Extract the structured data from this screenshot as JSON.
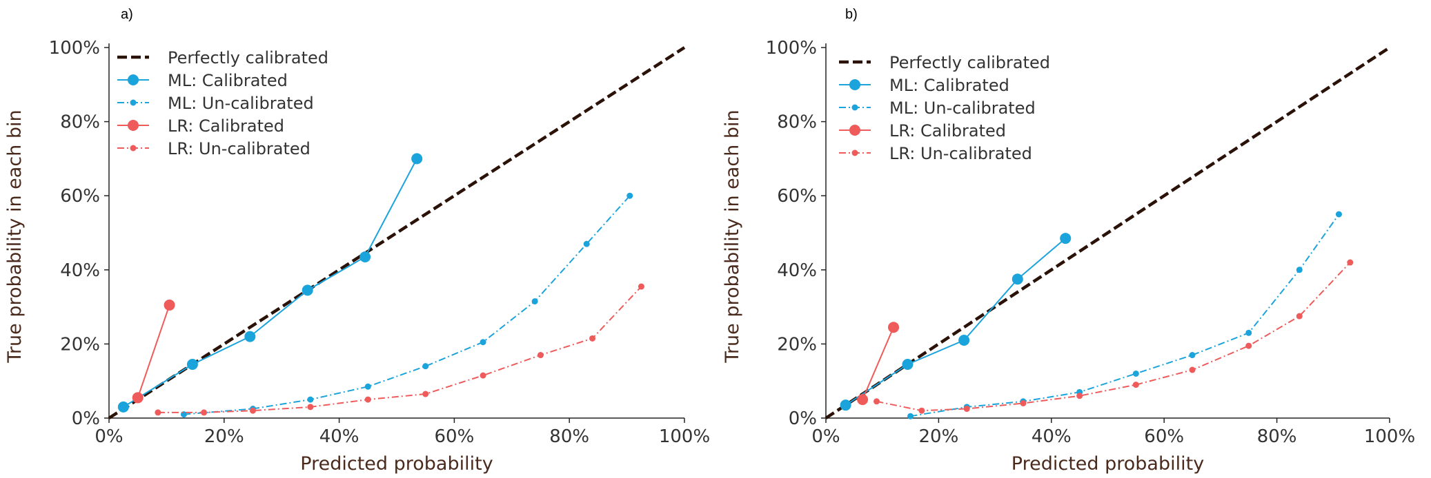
{
  "figure": {
    "panels": [
      "a)",
      "b)"
    ]
  },
  "chart_data": [
    {
      "type": "line",
      "panel_label": "a)",
      "xlabel": "Predicted probability",
      "ylabel": "True probability in each bin",
      "xlim": [
        0,
        1
      ],
      "ylim": [
        0,
        1
      ],
      "x_ticks": [
        "0%",
        "20%",
        "40%",
        "60%",
        "80%",
        "100%"
      ],
      "y_ticks": [
        "0%",
        "20%",
        "40%",
        "60%",
        "80%",
        "100%"
      ],
      "grid": false,
      "legend_position": "top-left",
      "series": [
        {
          "name": "Perfectly calibrated",
          "color": "#2b1208",
          "style": "dashed",
          "marker": "none",
          "x": [
            0,
            1
          ],
          "y": [
            0,
            1
          ]
        },
        {
          "name": "ML: Calibrated",
          "color": "#1ba3dc",
          "style": "solid",
          "marker": "large",
          "x": [
            0.025,
            0.145,
            0.245,
            0.345,
            0.445,
            0.535
          ],
          "y": [
            0.03,
            0.145,
            0.22,
            0.345,
            0.435,
            0.7
          ]
        },
        {
          "name": "ML: Un-calibrated",
          "color": "#1ba3dc",
          "style": "dashdot",
          "marker": "small",
          "x": [
            0.13,
            0.25,
            0.35,
            0.45,
            0.55,
            0.65,
            0.74,
            0.83,
            0.905
          ],
          "y": [
            0.01,
            0.025,
            0.05,
            0.085,
            0.14,
            0.205,
            0.315,
            0.47,
            0.6
          ]
        },
        {
          "name": "LR: Calibrated",
          "color": "#ef5a5a",
          "style": "solid",
          "marker": "large",
          "x": [
            0.05,
            0.105
          ],
          "y": [
            0.055,
            0.305
          ]
        },
        {
          "name": "LR: Un-calibrated",
          "color": "#ef5a5a",
          "style": "dashdot",
          "marker": "small",
          "x": [
            0.085,
            0.165,
            0.25,
            0.35,
            0.45,
            0.55,
            0.65,
            0.75,
            0.84,
            0.925
          ],
          "y": [
            0.015,
            0.015,
            0.02,
            0.03,
            0.05,
            0.065,
            0.115,
            0.17,
            0.215,
            0.355
          ]
        }
      ]
    },
    {
      "type": "line",
      "panel_label": "b)",
      "xlabel": "Predicted probability",
      "ylabel": "True probability in each bin",
      "xlim": [
        0,
        1
      ],
      "ylim": [
        0,
        1
      ],
      "x_ticks": [
        "0%",
        "20%",
        "40%",
        "60%",
        "80%",
        "100%"
      ],
      "y_ticks": [
        "0%",
        "20%",
        "40%",
        "60%",
        "80%",
        "100%"
      ],
      "grid": false,
      "legend_position": "top-left",
      "series": [
        {
          "name": "Perfectly calibrated",
          "color": "#2b1208",
          "style": "dashed",
          "marker": "none",
          "x": [
            0,
            1
          ],
          "y": [
            0,
            1
          ]
        },
        {
          "name": "ML: Calibrated",
          "color": "#1ba3dc",
          "style": "solid",
          "marker": "large",
          "x": [
            0.035,
            0.145,
            0.245,
            0.34,
            0.425
          ],
          "y": [
            0.035,
            0.145,
            0.21,
            0.375,
            0.485
          ]
        },
        {
          "name": "ML: Un-calibrated",
          "color": "#1ba3dc",
          "style": "dashdot",
          "marker": "small",
          "x": [
            0.15,
            0.25,
            0.35,
            0.45,
            0.55,
            0.65,
            0.75,
            0.84,
            0.91
          ],
          "y": [
            0.005,
            0.03,
            0.045,
            0.07,
            0.12,
            0.17,
            0.23,
            0.4,
            0.55
          ]
        },
        {
          "name": "LR: Calibrated",
          "color": "#ef5a5a",
          "style": "solid",
          "marker": "large",
          "x": [
            0.065,
            0.12
          ],
          "y": [
            0.05,
            0.245
          ]
        },
        {
          "name": "LR: Un-calibrated",
          "color": "#ef5a5a",
          "style": "dashdot",
          "marker": "small",
          "x": [
            0.09,
            0.17,
            0.25,
            0.35,
            0.45,
            0.55,
            0.65,
            0.75,
            0.84,
            0.93
          ],
          "y": [
            0.045,
            0.02,
            0.025,
            0.04,
            0.06,
            0.09,
            0.13,
            0.195,
            0.275,
            0.42
          ]
        }
      ]
    }
  ]
}
